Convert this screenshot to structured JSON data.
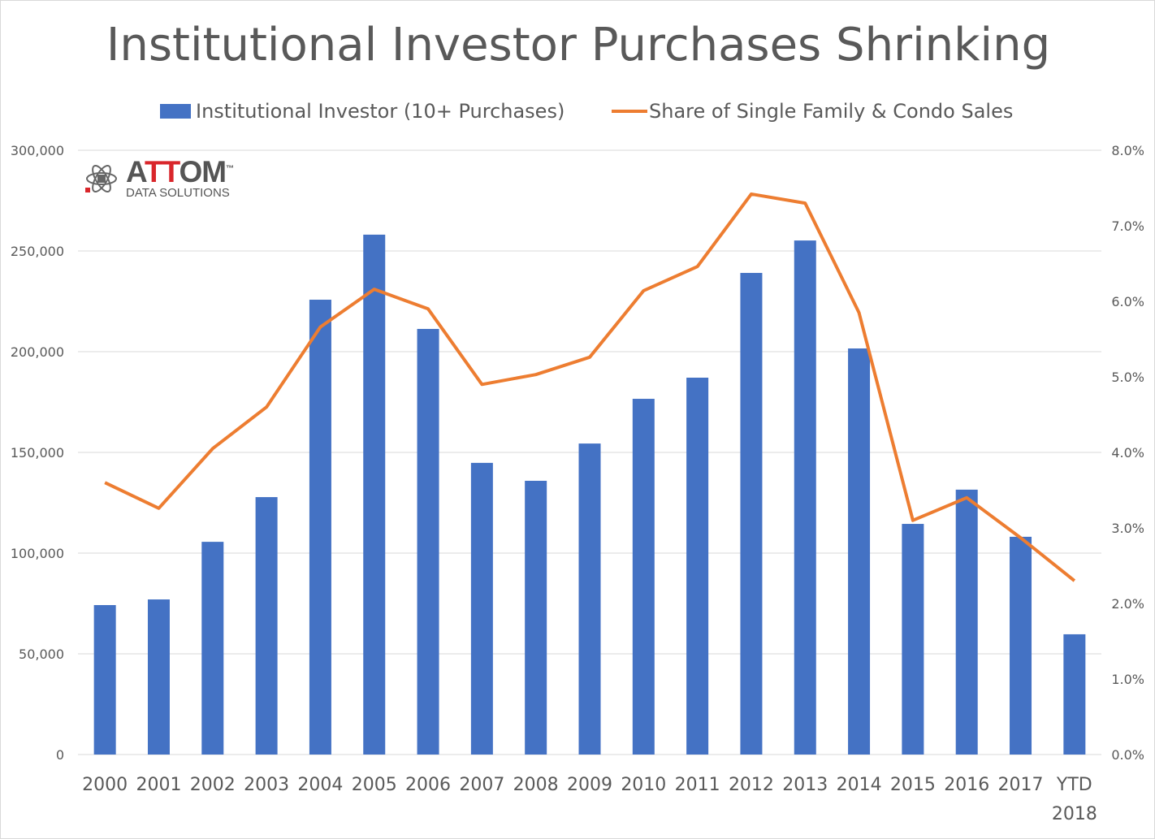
{
  "chart_data": {
    "type": "bar+line",
    "title": "Institutional Investor Purchases Shrinking",
    "categories": [
      "2000",
      "2001",
      "2002",
      "2003",
      "2004",
      "2005",
      "2006",
      "2007",
      "2008",
      "2009",
      "2010",
      "2011",
      "2012",
      "2013",
      "2014",
      "2015",
      "2016",
      "2017",
      "YTD 2018"
    ],
    "series": [
      {
        "name": "Institutional Investor (10+ Purchases)",
        "type": "bar",
        "axis": "left",
        "color": "#4472c4",
        "values": [
          74200,
          77000,
          105600,
          127800,
          225800,
          258100,
          211300,
          144800,
          135900,
          154400,
          176600,
          187100,
          239100,
          255200,
          201600,
          114500,
          131500,
          108100,
          59700
        ]
      },
      {
        "name": "Share of Single Family & Condo Sales",
        "type": "line",
        "axis": "right",
        "color": "#ed7d31",
        "values": [
          3.6,
          3.26,
          4.05,
          4.6,
          5.66,
          6.16,
          5.9,
          4.9,
          5.03,
          5.26,
          6.14,
          6.46,
          7.42,
          7.3,
          5.85,
          3.1,
          3.4,
          2.87,
          2.3
        ]
      }
    ],
    "y_left": {
      "lim": [
        0,
        300000
      ],
      "ticks": [
        "0",
        "50,000",
        "100,000",
        "150,000",
        "200,000",
        "250,000",
        "300,000"
      ]
    },
    "y_right": {
      "lim": [
        0,
        8
      ],
      "ticks": [
        "0.0%",
        "1.0%",
        "2.0%",
        "3.0%",
        "4.0%",
        "5.0%",
        "6.0%",
        "7.0%",
        "8.0%"
      ]
    },
    "grid": true,
    "legend": "top"
  },
  "logo": {
    "brand": "ATTOM",
    "tm": "™",
    "sub": "DATA SOLUTIONS"
  }
}
